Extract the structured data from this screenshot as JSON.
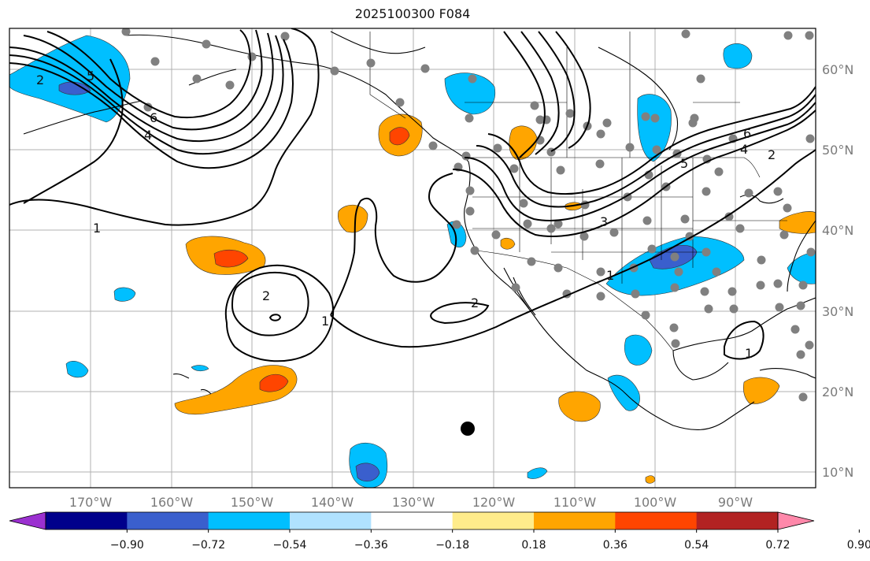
{
  "title": "2025100300 F084",
  "latitude_labels": [
    "60°N",
    "50°N",
    "40°N",
    "30°N",
    "20°N",
    "10°N"
  ],
  "longitude_labels": [
    "170°W",
    "160°W",
    "150°W",
    "140°W",
    "130°W",
    "120°W",
    "110°W",
    "100°W",
    "90°W"
  ],
  "contour_labels": [
    "2",
    "5",
    "6",
    "4",
    "1",
    "2",
    "1",
    "2",
    "3",
    "5",
    "4",
    "6",
    "2",
    "1",
    "1"
  ],
  "colorbar": {
    "colors": [
      "#9b30d0",
      "#00008b",
      "#3a5fcd",
      "#00bfff",
      "#b0e2ff",
      "#ffffff",
      "#ffec8b",
      "#ffa500",
      "#ff4500",
      "#b22222",
      "#ff88aa"
    ],
    "tick_labels": [
      "−0.90",
      "−0.72",
      "−0.54",
      "−0.36",
      "−0.18",
      "0.18",
      "0.36",
      "0.54",
      "0.72",
      "0.90"
    ]
  },
  "fill_colors": {
    "neg_light": "#00bfff",
    "neg_mid": "#3a5fcd",
    "pos_light": "#ffa500",
    "pos_mid": "#ff4500",
    "station": "#808080"
  }
}
